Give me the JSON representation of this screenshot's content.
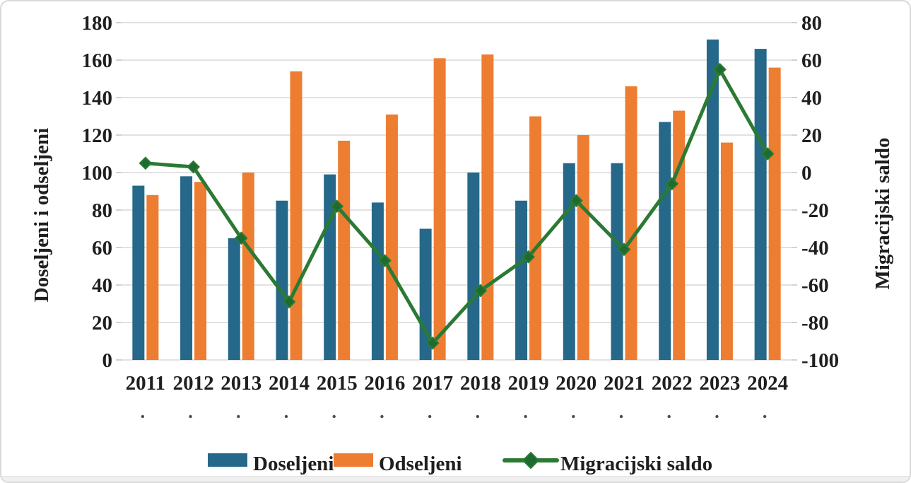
{
  "chart_data": {
    "type": "combo-bar-line",
    "title": "",
    "categories": [
      "2011",
      "2012",
      "2013",
      "2014",
      "2015",
      "2016",
      "2017",
      "2018",
      "2019",
      "2020",
      "2021",
      "2022",
      "2023",
      "2024"
    ],
    "series": [
      {
        "name": "Doseljeni",
        "type": "bar",
        "axis": "left",
        "color": "#256889",
        "values": [
          93,
          98,
          65,
          85,
          99,
          84,
          70,
          100,
          85,
          105,
          105,
          127,
          171,
          166
        ]
      },
      {
        "name": "Odseljeni",
        "type": "bar",
        "axis": "left",
        "color": "#ED7D31",
        "values": [
          88,
          95,
          100,
          154,
          117,
          131,
          161,
          163,
          130,
          120,
          146,
          133,
          116,
          156
        ]
      },
      {
        "name": "Migracijski saldo",
        "type": "line",
        "axis": "right",
        "color": "#2B7A34",
        "marker": "diamond",
        "marker_color": "#1E6B2E",
        "values": [
          5,
          3,
          -35,
          -69,
          -18,
          -47,
          -91,
          -63,
          -45,
          -15,
          -41,
          -6,
          55,
          10
        ]
      }
    ],
    "left_axis": {
      "title": "Doseljeni i odseljeni",
      "min": 0,
      "max": 180,
      "step": 20
    },
    "right_axis": {
      "title": "Migracijski saldo",
      "min": -100,
      "max": 80,
      "step": 20
    },
    "gridlines": true,
    "legend_position": "bottom",
    "category_dot_mark": "."
  },
  "legend": {
    "items": [
      "Doseljeni",
      "Odseljeni",
      "Migracijski saldo"
    ]
  },
  "colors": {
    "grid": "#D9D9D9",
    "axis_tick": "#BFBFBF",
    "text": "#1F1F1F",
    "dot": "#4D4D4D",
    "frame_border": "#D9D9D9"
  }
}
